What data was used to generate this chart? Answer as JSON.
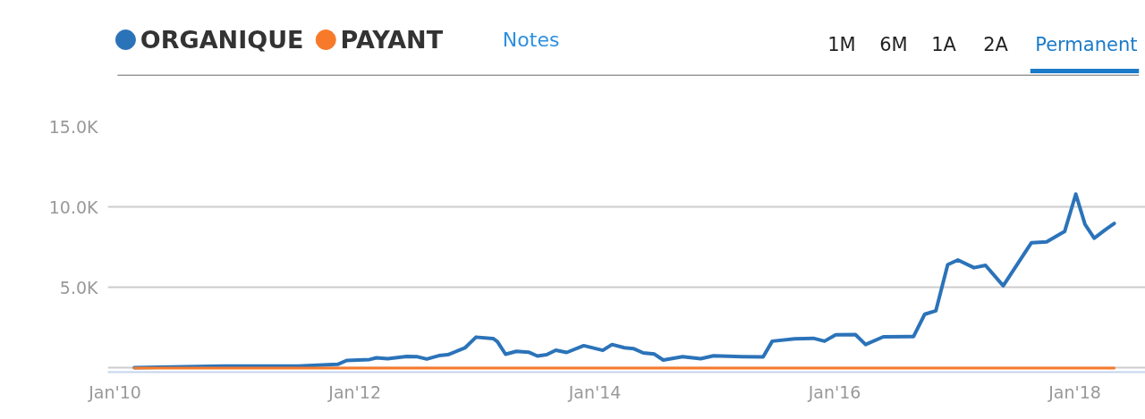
{
  "chart_data": {
    "type": "line",
    "annotations": [
      "Notes",
      "1M",
      "6M",
      "1A",
      "2A",
      "Permanent"
    ],
    "xlim": [
      "2009-12-10",
      "2018-08-04"
    ],
    "xticks": [
      {
        "value": "2010-01-01",
        "label": "Jan'10"
      },
      {
        "value": "2012-01-01",
        "label": "Jan'12"
      },
      {
        "value": "2014-01-01",
        "label": "Jan'14"
      },
      {
        "value": "2016-01-01",
        "label": "Jan'16"
      },
      {
        "value": "2018-01-01",
        "label": "Jan'18"
      }
    ],
    "ylim": [
      -250,
      15000
    ],
    "yticks": [
      {
        "value": 0,
        "label": null
      },
      {
        "value": 5000,
        "label": "5.0K"
      },
      {
        "value": 10000,
        "label": "10.0K"
      },
      {
        "value": 15000,
        "label": "15.0K"
      }
    ],
    "grid": "y",
    "legend": "top left",
    "marker": "none",
    "line_style": "solid",
    "series": [
      {
        "name": "ORGANIQUE",
        "color": "#2b73b9",
        "x": [
          "2010-03-01",
          "2010-11-28",
          "2011-07-13",
          "2011-11-10",
          "2011-12-07",
          "2012-02-15",
          "2012-03-07",
          "2012-04-10",
          "2012-06-07",
          "2012-07-10",
          "2012-08-07",
          "2012-09-13",
          "2012-10-10",
          "2012-12-01",
          "2013-01-04",
          "2013-02-25",
          "2013-03-10",
          "2013-04-04",
          "2013-05-07",
          "2013-06-13",
          "2013-07-10",
          "2013-08-07",
          "2013-09-04",
          "2013-10-07",
          "2013-11-28",
          "2014-01-25",
          "2014-02-22",
          "2014-04-01",
          "2014-04-28",
          "2014-05-28",
          "2014-07-01",
          "2014-07-28",
          "2014-09-25",
          "2014-11-19",
          "2014-12-28",
          "2015-03-25",
          "2015-05-28",
          "2015-06-25",
          "2015-09-01",
          "2015-10-28",
          "2015-12-01",
          "2016-01-04",
          "2016-03-04",
          "2016-04-04",
          "2016-05-28",
          "2016-08-28",
          "2016-10-01",
          "2016-11-04",
          "2016-12-10",
          "2017-01-10",
          "2017-02-28",
          "2017-04-04",
          "2017-05-28",
          "2017-08-22",
          "2017-10-07",
          "2017-12-01",
          "2018-01-04",
          "2018-02-01",
          "2018-03-01",
          "2018-04-04",
          "2018-05-01"
        ],
        "values": [
          30,
          120,
          120,
          230,
          470,
          530,
          640,
          580,
          720,
          700,
          560,
          770,
          830,
          1250,
          1920,
          1830,
          1640,
          860,
          1040,
          990,
          750,
          830,
          1110,
          970,
          1390,
          1100,
          1460,
          1260,
          1210,
          940,
          870,
          500,
          710,
          580,
          760,
          710,
          690,
          1670,
          1810,
          1850,
          1670,
          2060,
          2080,
          1460,
          1940,
          1960,
          3340,
          3560,
          6420,
          6710,
          6230,
          6380,
          5110,
          7780,
          7830,
          8480,
          10800,
          8920,
          8060,
          8590,
          8980
        ]
      },
      {
        "name": "PAYANT",
        "color": "#f77a2b",
        "x": [
          "2010-03-01",
          "2018-05-01"
        ],
        "values": [
          0,
          0
        ]
      }
    ]
  }
}
